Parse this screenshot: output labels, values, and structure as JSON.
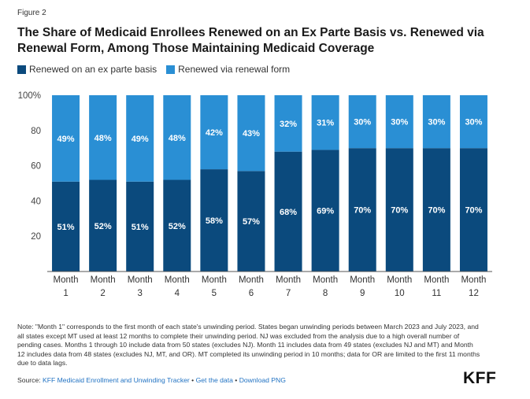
{
  "figure_label": "Figure 2",
  "title": "The Share of Medicaid Enrollees Renewed on an Ex Parte Basis vs. Renewed via Renewal Form, Among Those Maintaining Medicaid Coverage",
  "colors": {
    "ex_parte": "#0b4a7d",
    "renewal_form": "#2a8fd4"
  },
  "chart_data": {
    "type": "bar",
    "stacked": true,
    "categories": [
      [
        "Month",
        "1"
      ],
      [
        "Month",
        "2"
      ],
      [
        "Month",
        "3"
      ],
      [
        "Month",
        "4"
      ],
      [
        "Month",
        "5"
      ],
      [
        "Month",
        "6"
      ],
      [
        "Month",
        "7"
      ],
      [
        "Month",
        "8"
      ],
      [
        "Month",
        "9"
      ],
      [
        "Month",
        "10"
      ],
      [
        "Month",
        "11"
      ],
      [
        "Month",
        "12"
      ]
    ],
    "series": [
      {
        "name": "Renewed on an ex parte basis",
        "values": [
          51,
          52,
          51,
          52,
          58,
          57,
          68,
          69,
          70,
          70,
          70,
          70
        ],
        "labels": [
          "51%",
          "52%",
          "51%",
          "52%",
          "58%",
          "57%",
          "68%",
          "69%",
          "70%",
          "70%",
          "70%",
          "70%"
        ]
      },
      {
        "name": "Renewed via renewal form",
        "values": [
          49,
          48,
          49,
          48,
          42,
          43,
          32,
          31,
          30,
          30,
          30,
          30
        ],
        "labels": [
          "49%",
          "48%",
          "49%",
          "48%",
          "42%",
          "43%",
          "32%",
          "31%",
          "30%",
          "30%",
          "30%",
          "30%"
        ]
      }
    ],
    "yticks": [
      "20",
      "40",
      "60",
      "80",
      "100%"
    ],
    "ytick_values": [
      20,
      40,
      60,
      80,
      100
    ],
    "ylim": [
      0,
      100
    ],
    "legend_position": "top-left",
    "grid": false
  },
  "note": "Note: \"Month 1\" corresponds to the first month of each state's unwinding period. States began unwinding periods between March 2023 and July 2023, and all states except MT used at least 12 months to complete their unwinding period. NJ was excluded from the analysis due to a high overall number of pending cases. Months 1 through 10 include data from 50 states (excludes NJ). Month 11 includes data from 49 states (excludes NJ and MT) and Month 12 includes data from 48 states (excludes NJ, MT, and OR). MT completed its unwinding period in 10 months; data for OR are limited to the first 11 months due to data lags.",
  "source": {
    "prefix": "Source: ",
    "link1": "KFF Medicaid Enrollment and Unwinding Tracker",
    "sep1": " • ",
    "link2": "Get the data",
    "sep2": " • ",
    "link3": "Download PNG"
  },
  "logo": "KFF"
}
